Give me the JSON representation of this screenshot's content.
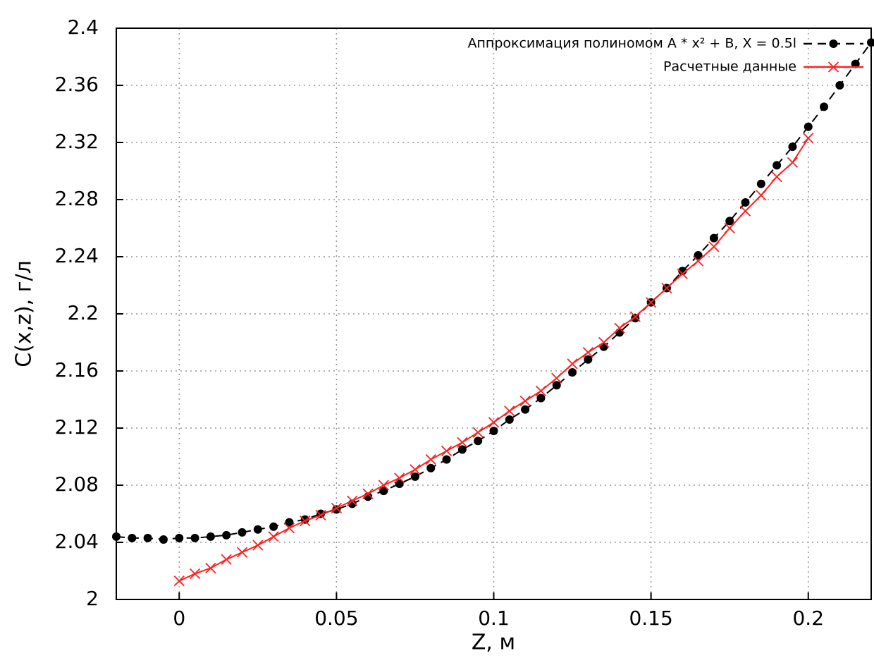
{
  "chart_data": {
    "type": "line",
    "x_label": "Z, м",
    "y_label": "C(x,z), г/л",
    "xlim": [
      -0.02,
      0.22
    ],
    "ylim": [
      2,
      2.4
    ],
    "xticks": [
      0,
      0.05,
      0.1,
      0.15,
      0.2
    ],
    "yticks": [
      2,
      2.04,
      2.08,
      2.12,
      2.16,
      2.2,
      2.24,
      2.28,
      2.32,
      2.36,
      2.4
    ],
    "grid": true,
    "legend": "top-right",
    "series": [
      {
        "name": "Аппроксимация полиномом A * x² + B, X = 0.5l",
        "color": "#000000",
        "marker": "circle",
        "dash": true,
        "x": [
          -0.02,
          -0.015,
          -0.01,
          -0.005,
          0,
          0.005,
          0.01,
          0.015,
          0.02,
          0.025,
          0.03,
          0.035,
          0.04,
          0.045,
          0.05,
          0.055,
          0.06,
          0.065,
          0.07,
          0.075,
          0.08,
          0.085,
          0.09,
          0.095,
          0.1,
          0.105,
          0.11,
          0.115,
          0.12,
          0.125,
          0.13,
          0.135,
          0.14,
          0.145,
          0.15,
          0.155,
          0.16,
          0.165,
          0.17,
          0.175,
          0.18,
          0.185,
          0.19,
          0.195,
          0.2,
          0.205,
          0.21,
          0.215,
          0.22
        ],
        "values": [
          2.044,
          2.043,
          2.043,
          2.042,
          2.043,
          2.043,
          2.044,
          2.045,
          2.047,
          2.049,
          2.051,
          2.054,
          2.056,
          2.06,
          2.063,
          2.067,
          2.072,
          2.076,
          2.081,
          2.086,
          2.092,
          2.098,
          2.105,
          2.111,
          2.118,
          2.126,
          2.133,
          2.141,
          2.15,
          2.159,
          2.168,
          2.177,
          2.187,
          2.197,
          2.208,
          2.218,
          2.23,
          2.241,
          2.253,
          2.265,
          2.278,
          2.291,
          2.304,
          2.317,
          2.331,
          2.345,
          2.36,
          2.375,
          2.39
        ]
      },
      {
        "name": "Расчетные данные",
        "color": "#ff2020",
        "marker": "cross",
        "dash": false,
        "x": [
          0,
          0.005,
          0.01,
          0.015,
          0.02,
          0.025,
          0.03,
          0.035,
          0.04,
          0.045,
          0.05,
          0.055,
          0.06,
          0.065,
          0.07,
          0.075,
          0.08,
          0.085,
          0.09,
          0.095,
          0.1,
          0.105,
          0.11,
          0.115,
          0.12,
          0.125,
          0.13,
          0.135,
          0.14,
          0.145,
          0.15,
          0.155,
          0.16,
          0.165,
          0.17,
          0.175,
          0.18,
          0.185,
          0.19,
          0.195,
          0.2
        ],
        "values": [
          2.013,
          2.018,
          2.022,
          2.028,
          2.033,
          2.038,
          2.044,
          2.05,
          2.055,
          2.059,
          2.064,
          2.069,
          2.074,
          2.08,
          2.085,
          2.091,
          2.098,
          2.104,
          2.11,
          2.117,
          2.124,
          2.132,
          2.139,
          2.146,
          2.155,
          2.165,
          2.173,
          2.18,
          2.19,
          2.198,
          2.208,
          2.218,
          2.228,
          2.237,
          2.247,
          2.26,
          2.272,
          2.283,
          2.296,
          2.306,
          2.323
        ]
      }
    ]
  }
}
